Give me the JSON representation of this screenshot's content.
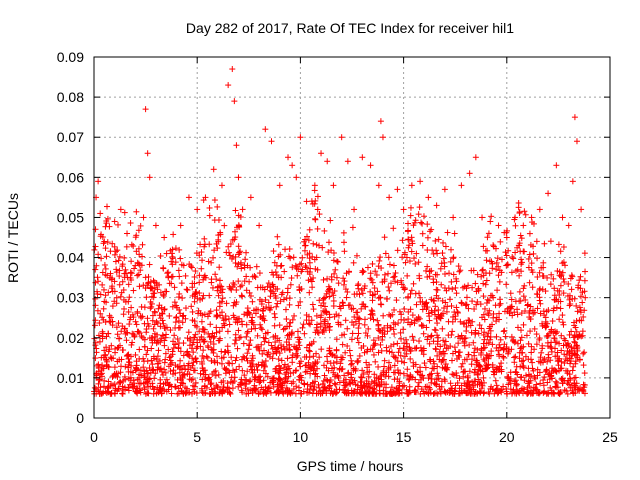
{
  "chart_data": {
    "type": "scatter",
    "title": "Day 282 of 2017, Rate Of TEC Index for receiver hil1",
    "xlabel": "GPS time / hours",
    "ylabel": "ROTI / TECUs",
    "xlim": [
      0,
      25
    ],
    "ylim": [
      0,
      0.09
    ],
    "x_ticks": [
      "0",
      "5",
      "10",
      "15",
      "20",
      "25"
    ],
    "y_ticks": [
      "0",
      "0.01",
      "0.02",
      "0.03",
      "0.04",
      "0.05",
      "0.06",
      "0.07",
      "0.08",
      "0.09"
    ],
    "grid": true,
    "legend": "none",
    "marker": "+",
    "colors": {
      "points": "#ff0000",
      "grid": "#a0a0a0",
      "axis": "#000000"
    },
    "series": [
      {
        "x": [
          0.1,
          0.2,
          0.3,
          0.5,
          0.8,
          1.0,
          1.3,
          1.6,
          2.0,
          2.4,
          2.5,
          2.6,
          2.7,
          3.0,
          3.4,
          3.8,
          4.2,
          4.6,
          5.0,
          5.4,
          5.8,
          6.2,
          6.5,
          6.7,
          6.8,
          6.9,
          7.0,
          7.2,
          7.6,
          8.0,
          8.3,
          8.6,
          9.0,
          9.4,
          9.6,
          9.8,
          10.0,
          10.3,
          10.7,
          11.0,
          11.3,
          11.6,
          12.0,
          12.3,
          12.6,
          13.0,
          13.4,
          13.8,
          13.9,
          14.0,
          14.3,
          14.7,
          15.0,
          15.4,
          15.8,
          16.2,
          16.6,
          17.0,
          17.4,
          17.8,
          18.2,
          18.5,
          18.8,
          19.2,
          19.6,
          20.0,
          20.4,
          20.8,
          21.2,
          21.6,
          22.0,
          22.4,
          22.7,
          23.0,
          23.2,
          23.3,
          23.4,
          23.6,
          23.8
        ],
        "y": [
          0.055,
          0.059,
          0.051,
          0.044,
          0.036,
          0.049,
          0.052,
          0.046,
          0.038,
          0.05,
          0.077,
          0.066,
          0.06,
          0.048,
          0.045,
          0.042,
          0.048,
          0.055,
          0.052,
          0.055,
          0.062,
          0.058,
          0.083,
          0.087,
          0.079,
          0.068,
          0.06,
          0.052,
          0.055,
          0.048,
          0.072,
          0.069,
          0.058,
          0.065,
          0.063,
          0.06,
          0.07,
          0.054,
          0.058,
          0.066,
          0.064,
          0.058,
          0.07,
          0.064,
          0.052,
          0.065,
          0.063,
          0.058,
          0.074,
          0.07,
          0.055,
          0.057,
          0.052,
          0.058,
          0.059,
          0.055,
          0.053,
          0.057,
          0.05,
          0.058,
          0.061,
          0.065,
          0.05,
          0.049,
          0.048,
          0.045,
          0.05,
          0.048,
          0.05,
          0.052,
          0.056,
          0.063,
          0.05,
          0.048,
          0.059,
          0.075,
          0.069,
          0.052,
          0.03
        ]
      }
    ]
  }
}
